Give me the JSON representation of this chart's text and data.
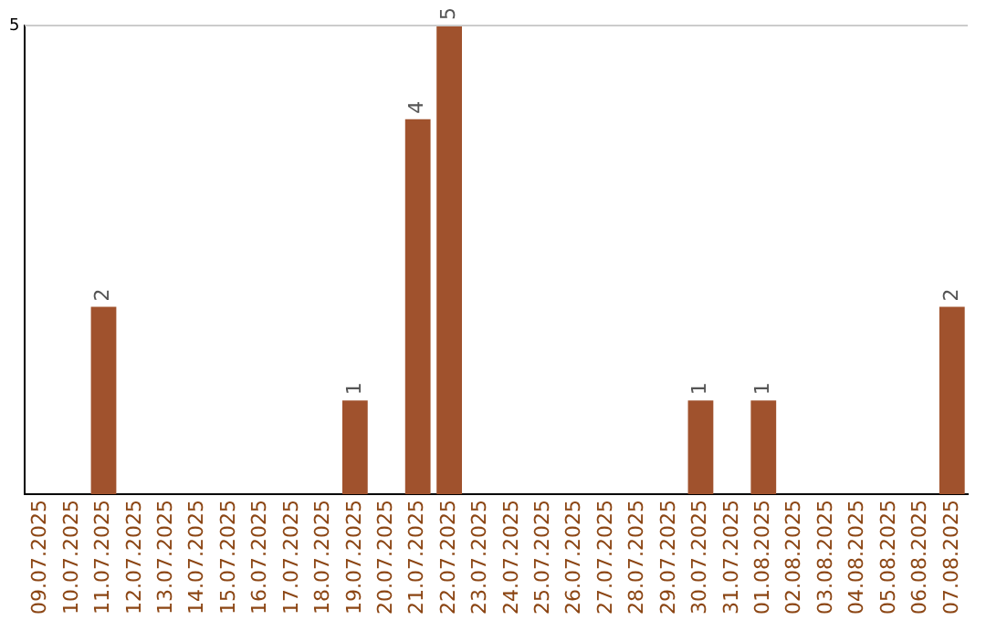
{
  "chart_data": {
    "type": "bar",
    "categories": [
      "09.07.2025",
      "10.07.2025",
      "11.07.2025",
      "12.07.2025",
      "13.07.2025",
      "14.07.2025",
      "15.07.2025",
      "16.07.2025",
      "17.07.2025",
      "18.07.2025",
      "19.07.2025",
      "20.07.2025",
      "21.07.2025",
      "22.07.2025",
      "23.07.2025",
      "24.07.2025",
      "25.07.2025",
      "26.07.2025",
      "27.07.2025",
      "28.07.2025",
      "29.07.2025",
      "30.07.2025",
      "31.07.2025",
      "01.08.2025",
      "02.08.2025",
      "03.08.2025",
      "04.08.2025",
      "05.08.2025",
      "06.08.2025",
      "07.08.2025"
    ],
    "values": [
      0,
      0,
      2,
      0,
      0,
      0,
      0,
      0,
      0,
      0,
      1,
      0,
      4,
      5,
      0,
      0,
      0,
      0,
      0,
      0,
      0,
      1,
      0,
      1,
      0,
      0,
      0,
      0,
      0,
      2
    ],
    "value_labels": [
      null,
      null,
      "2",
      null,
      null,
      null,
      null,
      null,
      null,
      null,
      "1",
      null,
      "4",
      "5",
      null,
      null,
      null,
      null,
      null,
      null,
      null,
      "1",
      null,
      "1",
      null,
      null,
      null,
      null,
      null,
      "2"
    ],
    "color": "#a0522d",
    "ylim": [
      0,
      5
    ],
    "yticks": [
      5
    ],
    "ref_lines": [
      {
        "axis": "y",
        "value": 5,
        "color": "#cccccc"
      }
    ]
  }
}
